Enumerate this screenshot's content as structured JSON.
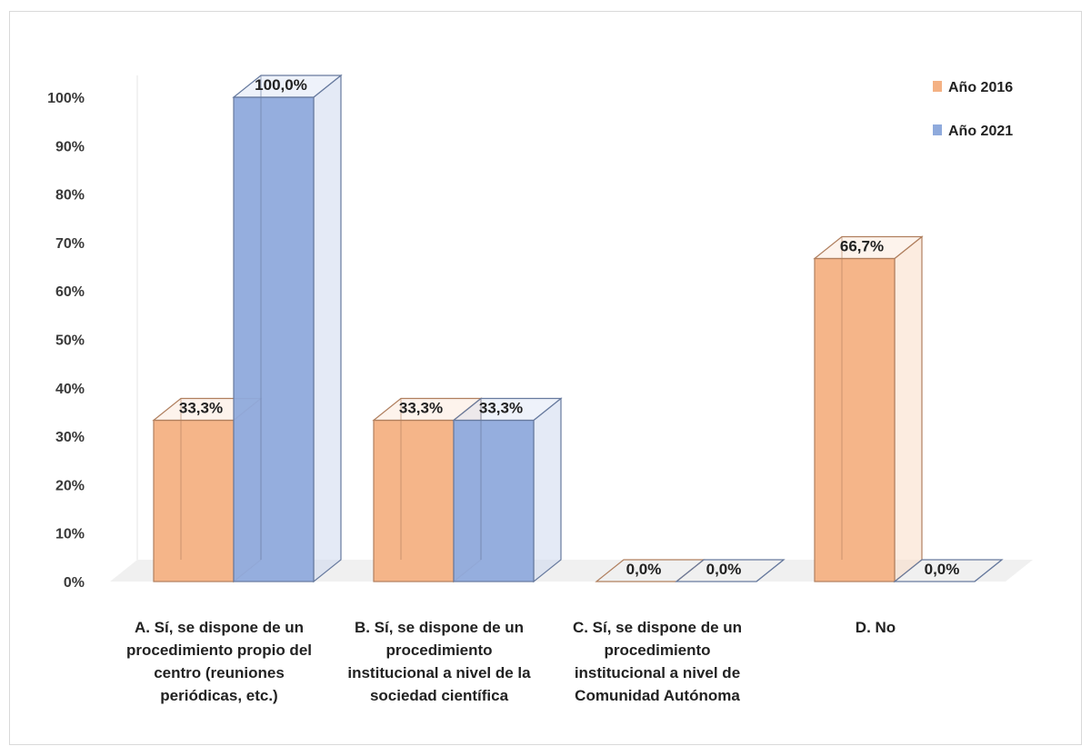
{
  "chart_data": {
    "type": "bar",
    "title": "",
    "xlabel": "",
    "ylabel": "",
    "ylim": [
      0,
      100
    ],
    "yticks": [
      "0%",
      "10%",
      "20%",
      "30%",
      "40%",
      "50%",
      "60%",
      "70%",
      "80%",
      "90%",
      "100%"
    ],
    "categories": [
      "A. Sí, se dispone de un procedimiento propio del centro (reuniones periódicas, etc.)",
      "B. Sí, se dispone de un procedimiento institucional a nivel de la sociedad científica",
      "C. Sí, se dispone de un procedimiento institucional a nivel de Comunidad Autónoma",
      "D. No"
    ],
    "series": [
      {
        "name": "Año 2016",
        "color": "#f4b183",
        "values": [
          33.3,
          33.3,
          0.0,
          66.7
        ],
        "labels": [
          "33,3%",
          "33,3%",
          "0,0%",
          "66,7%"
        ]
      },
      {
        "name": "Año 2021",
        "color": "#8faadc",
        "values": [
          100.0,
          33.3,
          0.0,
          0.0
        ],
        "labels": [
          "100,0%",
          "33,3%",
          "0,0%",
          "0,0%"
        ]
      }
    ],
    "legend": "top-right",
    "grid": false,
    "style": "3d-column"
  }
}
